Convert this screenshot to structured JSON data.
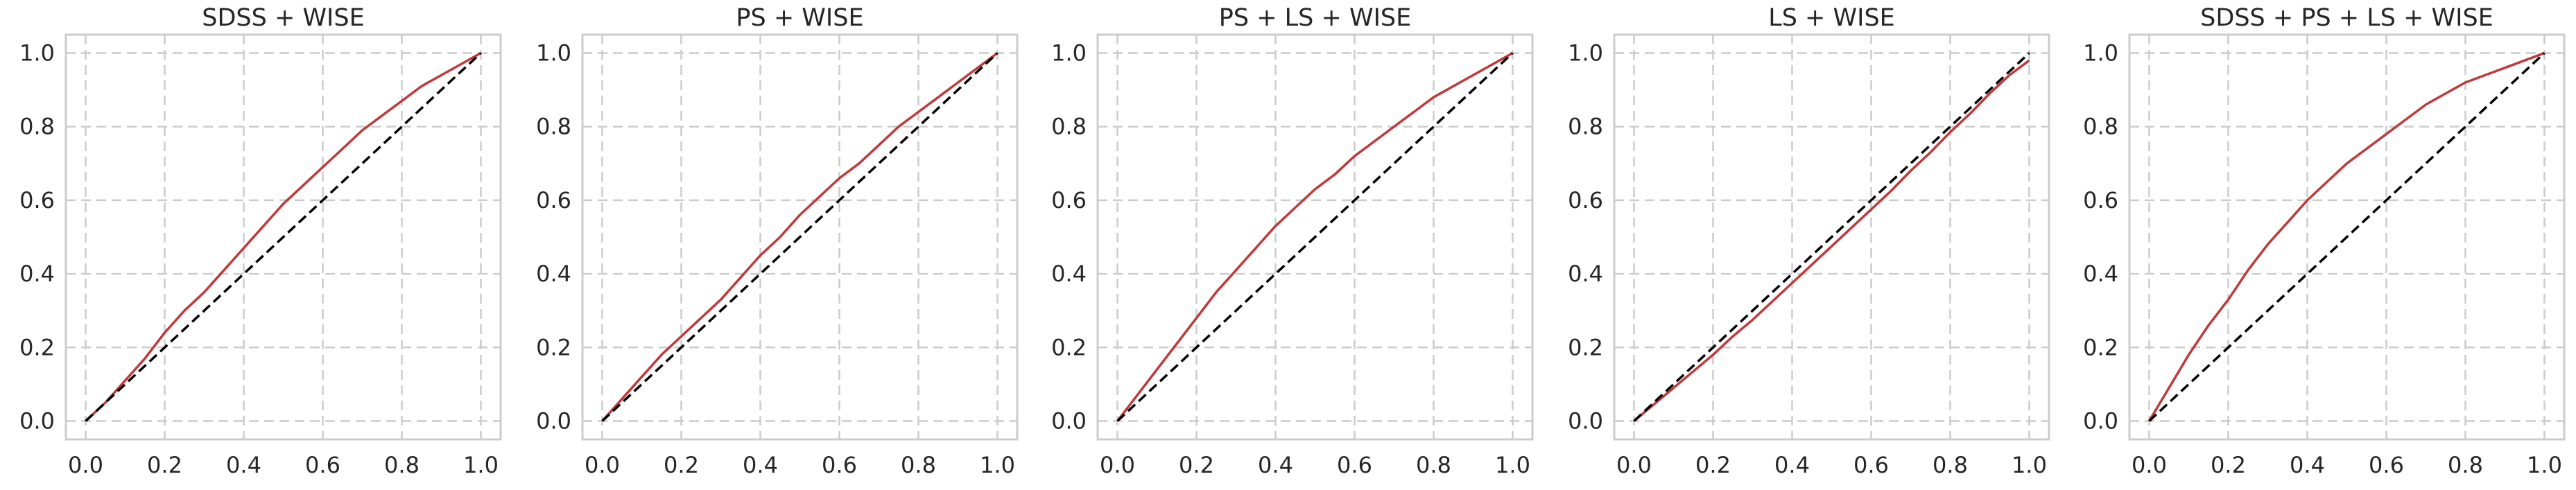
{
  "colors": {
    "series": "#c0393b",
    "reference": "#000000",
    "grid": "#cccccc",
    "frame": "#cccccc",
    "text": "#262626"
  },
  "chart_data": [
    {
      "type": "line",
      "title": "SDSS + WISE",
      "xlim": [
        -0.05,
        1.05
      ],
      "ylim": [
        -0.05,
        1.05
      ],
      "grid": true,
      "xticks": [
        "0.0",
        "0.2",
        "0.4",
        "0.6",
        "0.8",
        "1.0"
      ],
      "yticks": [
        "0.0",
        "0.2",
        "0.4",
        "0.6",
        "0.8",
        "1.0"
      ],
      "series": [
        {
          "x": [
            0,
            0.05,
            0.1,
            0.15,
            0.2,
            0.25,
            0.3,
            0.35,
            0.4,
            0.45,
            0.5,
            0.55,
            0.6,
            0.65,
            0.7,
            0.75,
            0.8,
            0.85,
            0.9,
            0.95,
            1.0
          ],
          "y": [
            0,
            0.05,
            0.11,
            0.17,
            0.24,
            0.3,
            0.35,
            0.41,
            0.47,
            0.53,
            0.59,
            0.64,
            0.69,
            0.74,
            0.79,
            0.83,
            0.87,
            0.91,
            0.94,
            0.97,
            1.0
          ]
        },
        {
          "x": [
            0,
            1
          ],
          "y": [
            0,
            1
          ],
          "style": "dashed"
        }
      ]
    },
    {
      "type": "line",
      "title": "PS + WISE",
      "xlim": [
        -0.05,
        1.05
      ],
      "ylim": [
        -0.05,
        1.05
      ],
      "grid": true,
      "xticks": [
        "0.0",
        "0.2",
        "0.4",
        "0.6",
        "0.8",
        "1.0"
      ],
      "yticks": [
        "0.0",
        "0.2",
        "0.4",
        "0.6",
        "0.8",
        "1.0"
      ],
      "series": [
        {
          "x": [
            0,
            0.05,
            0.1,
            0.15,
            0.2,
            0.25,
            0.3,
            0.35,
            0.4,
            0.45,
            0.5,
            0.55,
            0.6,
            0.65,
            0.7,
            0.75,
            0.8,
            0.85,
            0.9,
            0.95,
            1.0
          ],
          "y": [
            0,
            0.06,
            0.12,
            0.18,
            0.23,
            0.28,
            0.33,
            0.39,
            0.45,
            0.5,
            0.56,
            0.61,
            0.66,
            0.7,
            0.75,
            0.8,
            0.84,
            0.88,
            0.92,
            0.96,
            1.0
          ]
        },
        {
          "x": [
            0,
            1
          ],
          "y": [
            0,
            1
          ],
          "style": "dashed"
        }
      ]
    },
    {
      "type": "line",
      "title": "PS + LS + WISE",
      "xlim": [
        -0.05,
        1.05
      ],
      "ylim": [
        -0.05,
        1.05
      ],
      "grid": true,
      "xticks": [
        "0.0",
        "0.2",
        "0.4",
        "0.6",
        "0.8",
        "1.0"
      ],
      "yticks": [
        "0.0",
        "0.2",
        "0.4",
        "0.6",
        "0.8",
        "1.0"
      ],
      "series": [
        {
          "x": [
            0,
            0.05,
            0.1,
            0.15,
            0.2,
            0.25,
            0.3,
            0.35,
            0.4,
            0.45,
            0.5,
            0.55,
            0.6,
            0.65,
            0.7,
            0.75,
            0.8,
            0.85,
            0.9,
            0.95,
            1.0
          ],
          "y": [
            0,
            0.07,
            0.14,
            0.21,
            0.28,
            0.35,
            0.41,
            0.47,
            0.53,
            0.58,
            0.63,
            0.67,
            0.72,
            0.76,
            0.8,
            0.84,
            0.88,
            0.91,
            0.94,
            0.97,
            1.0
          ]
        },
        {
          "x": [
            0,
            1
          ],
          "y": [
            0,
            1
          ],
          "style": "dashed"
        }
      ]
    },
    {
      "type": "line",
      "title": "LS + WISE",
      "xlim": [
        -0.05,
        1.05
      ],
      "ylim": [
        -0.05,
        1.05
      ],
      "grid": true,
      "xticks": [
        "0.0",
        "0.2",
        "0.4",
        "0.6",
        "0.8",
        "1.0"
      ],
      "yticks": [
        "0.0",
        "0.2",
        "0.4",
        "0.6",
        "0.8",
        "1.0"
      ],
      "series": [
        {
          "x": [
            0,
            0.05,
            0.1,
            0.15,
            0.2,
            0.25,
            0.3,
            0.35,
            0.4,
            0.45,
            0.5,
            0.55,
            0.6,
            0.65,
            0.7,
            0.75,
            0.8,
            0.85,
            0.9,
            0.95,
            1.0
          ],
          "y": [
            0,
            0.045,
            0.09,
            0.135,
            0.18,
            0.23,
            0.275,
            0.325,
            0.375,
            0.425,
            0.475,
            0.525,
            0.575,
            0.625,
            0.68,
            0.73,
            0.785,
            0.835,
            0.89,
            0.94,
            0.98
          ]
        },
        {
          "x": [
            0,
            1
          ],
          "y": [
            0,
            1
          ],
          "style": "dashed"
        }
      ]
    },
    {
      "type": "line",
      "title": "SDSS + PS + LS + WISE",
      "xlim": [
        -0.05,
        1.05
      ],
      "ylim": [
        -0.05,
        1.05
      ],
      "grid": true,
      "xticks": [
        "0.0",
        "0.2",
        "0.4",
        "0.6",
        "0.8",
        "1.0"
      ],
      "yticks": [
        "0.0",
        "0.2",
        "0.4",
        "0.6",
        "0.8",
        "1.0"
      ],
      "series": [
        {
          "x": [
            0,
            0.05,
            0.1,
            0.15,
            0.2,
            0.25,
            0.3,
            0.35,
            0.4,
            0.45,
            0.5,
            0.55,
            0.6,
            0.65,
            0.7,
            0.75,
            0.8,
            0.85,
            0.9,
            0.95,
            1.0
          ],
          "y": [
            0,
            0.09,
            0.18,
            0.26,
            0.33,
            0.41,
            0.48,
            0.54,
            0.6,
            0.65,
            0.7,
            0.74,
            0.78,
            0.82,
            0.86,
            0.89,
            0.92,
            0.94,
            0.96,
            0.98,
            1.0
          ]
        },
        {
          "x": [
            0,
            1
          ],
          "y": [
            0,
            1
          ],
          "style": "dashed"
        }
      ]
    }
  ]
}
